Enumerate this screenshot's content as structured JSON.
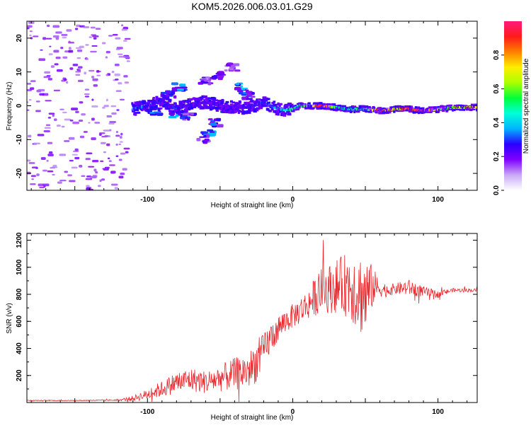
{
  "chart_data": [
    {
      "type": "heatmap",
      "title": "KOM5.2026.006.03.01.G29",
      "xlabel": "Height of straight line (km)",
      "ylabel": "Frequency (Hz)",
      "xlim": [
        -183,
        127
      ],
      "ylim": [
        -25,
        25
      ],
      "xticks": [
        -100,
        0,
        100
      ],
      "xtick_labels": [
        "-100",
        "0",
        "100"
      ],
      "yticks": [
        -20,
        -10,
        0,
        10,
        20
      ],
      "ytick_labels": [
        "-20",
        "-10",
        "0",
        "10",
        "20"
      ],
      "colorbar": {
        "label": "Normalized spectral amplitude",
        "range": [
          0,
          1
        ],
        "ticks": [
          0.0,
          0.2,
          0.4,
          0.6,
          0.8
        ],
        "tick_labels": [
          "0.0",
          "0.2",
          "0.4",
          "0.6",
          "0.8"
        ],
        "colors": [
          "#ffffff",
          "#c9a8f5",
          "#8000ff",
          "#2a00ff",
          "#00b4ff",
          "#00ffd8",
          "#00ff3a",
          "#aaff00",
          "#ffee00",
          "#ff8000",
          "#ff1a1a",
          "#ff1a80"
        ]
      },
      "noise_region": {
        "x_range": [
          -183,
          -113
        ],
        "f_range": [
          -25,
          25
        ],
        "amplitude": 0.1
      },
      "signal_track": [
        {
          "x": -110,
          "f": -1.0,
          "a": 0.32
        },
        {
          "x": -100,
          "f": 0.0,
          "a": 0.3
        },
        {
          "x": -90,
          "f": 1.5,
          "a": 0.25
        },
        {
          "x": -80,
          "f": -1.0,
          "a": 0.28
        },
        {
          "x": -70,
          "f": 0.5,
          "a": 0.22
        },
        {
          "x": -60,
          "f": 1.0,
          "a": 0.22
        },
        {
          "x": -50,
          "f": 0.0,
          "a": 0.2
        },
        {
          "x": -40,
          "f": -0.5,
          "a": 0.22
        },
        {
          "x": -30,
          "f": -0.5,
          "a": 0.24
        },
        {
          "x": -20,
          "f": 1.0,
          "a": 0.3
        },
        {
          "x": -15,
          "f": 0.0,
          "a": 0.34
        },
        {
          "x": -10,
          "f": -1.0,
          "a": 0.38
        },
        {
          "x": -5,
          "f": -1.2,
          "a": 0.42
        },
        {
          "x": 0,
          "f": -1.0,
          "a": 0.48
        },
        {
          "x": 5,
          "f": 0.0,
          "a": 0.48
        },
        {
          "x": 10,
          "f": 0.0,
          "a": 0.55
        },
        {
          "x": 20,
          "f": 0.0,
          "a": 0.95
        },
        {
          "x": 30,
          "f": -0.5,
          "a": 0.5
        },
        {
          "x": 40,
          "f": -1.0,
          "a": 0.45
        },
        {
          "x": 50,
          "f": -1.0,
          "a": 0.5
        },
        {
          "x": 60,
          "f": -1.5,
          "a": 0.9
        },
        {
          "x": 70,
          "f": -1.0,
          "a": 0.7
        },
        {
          "x": 80,
          "f": -1.0,
          "a": 0.95
        },
        {
          "x": 90,
          "f": -1.5,
          "a": 0.9
        },
        {
          "x": 100,
          "f": -1.0,
          "a": 0.6
        },
        {
          "x": 110,
          "f": -0.5,
          "a": 0.6
        },
        {
          "x": 120,
          "f": -0.5,
          "a": 0.7
        },
        {
          "x": 127,
          "f": -0.5,
          "a": 0.7
        }
      ],
      "blobs": [
        {
          "x": -60,
          "f": 7.5,
          "a": 0.2
        },
        {
          "x": -52,
          "f": 9.0,
          "a": 0.2
        },
        {
          "x": -42,
          "f": 11.5,
          "a": 0.15
        },
        {
          "x": -35,
          "f": 5.5,
          "a": 0.3
        },
        {
          "x": -31,
          "f": 3.0,
          "a": 0.25
        },
        {
          "x": -46,
          "f": -1.0,
          "a": 0.22
        },
        {
          "x": -53,
          "f": -5.0,
          "a": 0.25
        },
        {
          "x": -58,
          "f": -8.0,
          "a": 0.3
        },
        {
          "x": -61,
          "f": -10.0,
          "a": 0.2
        },
        {
          "x": -85,
          "f": 3.5,
          "a": 0.25
        },
        {
          "x": -80,
          "f": -2.5,
          "a": 0.3
        },
        {
          "x": -72,
          "f": -3.0,
          "a": 0.22
        },
        {
          "x": -95,
          "f": -1.5,
          "a": 0.28
        },
        {
          "x": -78,
          "f": 5.5,
          "a": 0.3
        }
      ]
    },
    {
      "type": "line",
      "xlabel": "Height of straight line (km)",
      "ylabel": "SNR (v/v)",
      "xlim": [
        -183,
        127
      ],
      "ylim": [
        0,
        1250
      ],
      "xticks": [
        -100,
        0,
        100
      ],
      "xtick_labels": [
        "-100",
        "0",
        "100"
      ],
      "yticks": [
        200,
        400,
        600,
        800,
        1000,
        1200
      ],
      "ytick_labels": [
        "200",
        "400",
        "600",
        "800",
        "1000",
        "1200"
      ],
      "color": "#e8282d",
      "series": [
        {
          "name": "SNR",
          "x": [
            -183,
            -150,
            -120,
            -110,
            -100,
            -90,
            -80,
            -70,
            -60,
            -50,
            -40,
            -30,
            -25,
            -20,
            -15,
            -10,
            -5,
            0,
            5,
            10,
            15,
            20,
            25,
            30,
            35,
            40,
            45,
            50,
            55,
            60,
            65,
            70,
            80,
            90,
            100,
            110,
            127
          ],
          "y": [
            15,
            15,
            18,
            30,
            60,
            100,
            150,
            170,
            150,
            180,
            210,
            240,
            300,
            380,
            480,
            550,
            600,
            640,
            680,
            720,
            780,
            830,
            840,
            860,
            870,
            880,
            820,
            780,
            860,
            840,
            830,
            840,
            850,
            820,
            800,
            830,
            830
          ],
          "jitter": [
            3,
            3,
            5,
            20,
            40,
            60,
            80,
            90,
            85,
            100,
            120,
            140,
            150,
            130,
            120,
            100,
            90,
            90,
            100,
            110,
            140,
            170,
            180,
            200,
            220,
            280,
            300,
            320,
            150,
            60,
            50,
            40,
            60,
            40,
            25,
            15,
            12
          ]
        }
      ]
    }
  ]
}
